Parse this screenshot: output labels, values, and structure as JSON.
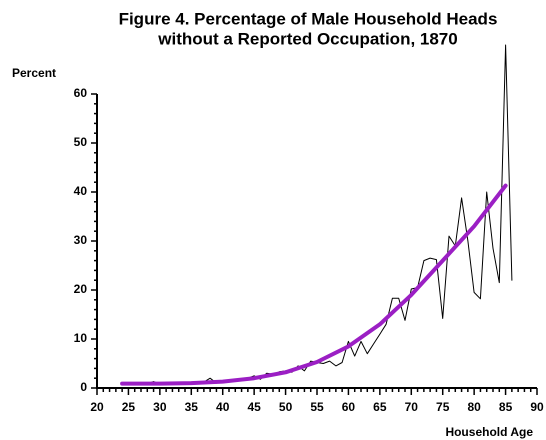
{
  "chart_data": {
    "type": "line",
    "title": [
      "Figure 4.  Percentage of Male Household Heads",
      "without a Reported Occupation, 1870"
    ],
    "y_label": "Percent",
    "x_label": "Household Age",
    "xlim": [
      20,
      90
    ],
    "xticks": [
      20,
      25,
      30,
      35,
      40,
      45,
      50,
      55,
      60,
      65,
      70,
      75,
      80,
      85,
      90
    ],
    "xminorticks": [
      21,
      22,
      23,
      24,
      26,
      27,
      28,
      29,
      31,
      32,
      33,
      34,
      36,
      37,
      38,
      39,
      41,
      42,
      43,
      44,
      46,
      47,
      48,
      49,
      51,
      52,
      53,
      54,
      56,
      57,
      58,
      59,
      61,
      62,
      63,
      64,
      66,
      67,
      68,
      69,
      71,
      72,
      73,
      74,
      76,
      77,
      78,
      79,
      81,
      82,
      83,
      84,
      86,
      87,
      88,
      89
    ],
    "ylim": [
      0,
      60
    ],
    "yticks": [
      0,
      10,
      20,
      30,
      40,
      50,
      60
    ],
    "yminorticks": [
      2,
      4,
      6,
      8,
      12,
      14,
      16,
      18,
      22,
      24,
      26,
      28,
      32,
      34,
      36,
      38,
      42,
      44,
      46,
      48,
      52,
      54,
      56,
      58
    ],
    "series": [
      {
        "color": "#000000",
        "width": 1,
        "x": [
          24,
          25,
          26,
          27,
          28,
          29,
          30,
          31,
          32,
          33,
          34,
          35,
          36,
          37,
          38,
          39,
          40,
          41,
          42,
          43,
          44,
          45,
          46,
          47,
          48,
          49,
          50,
          51,
          52,
          53,
          54,
          55,
          56,
          57,
          58,
          59,
          60,
          61,
          62,
          63,
          64,
          65,
          66,
          67,
          68,
          69,
          70,
          71,
          72,
          73,
          74,
          75,
          76,
          77,
          78,
          79,
          80,
          81,
          82,
          83,
          84,
          85,
          86
        ],
        "values": [
          1,
          0.8,
          0.9,
          0.8,
          0.9,
          1.3,
          0.8,
          0.9,
          1,
          0.9,
          1,
          1.1,
          1.1,
          1.2,
          2,
          1,
          1.5,
          1.3,
          1.6,
          1.8,
          2,
          2.5,
          1.8,
          3,
          2.8,
          3.3,
          3.5,
          3.2,
          4.5,
          3.5,
          5.5,
          5.2,
          5,
          5.5,
          4.5,
          5.2,
          9.5,
          6.5,
          9.5,
          7,
          9,
          11,
          13,
          18.3,
          18.3,
          13.8,
          20.2,
          20.5,
          26,
          26.5,
          26.2,
          14.2,
          31,
          29,
          38.8,
          30,
          19.5,
          18.2,
          40,
          28.5,
          21.5,
          70,
          22
        ]
      },
      {
        "color": "#9b1fc4",
        "width": 4,
        "x": [
          24,
          30,
          35,
          40,
          45,
          50,
          55,
          60,
          65,
          70,
          75,
          80,
          85
        ],
        "values": [
          0.9,
          0.9,
          1,
          1.3,
          2,
          3.2,
          5.3,
          8.5,
          13,
          19,
          26,
          33,
          41.3
        ]
      }
    ]
  }
}
